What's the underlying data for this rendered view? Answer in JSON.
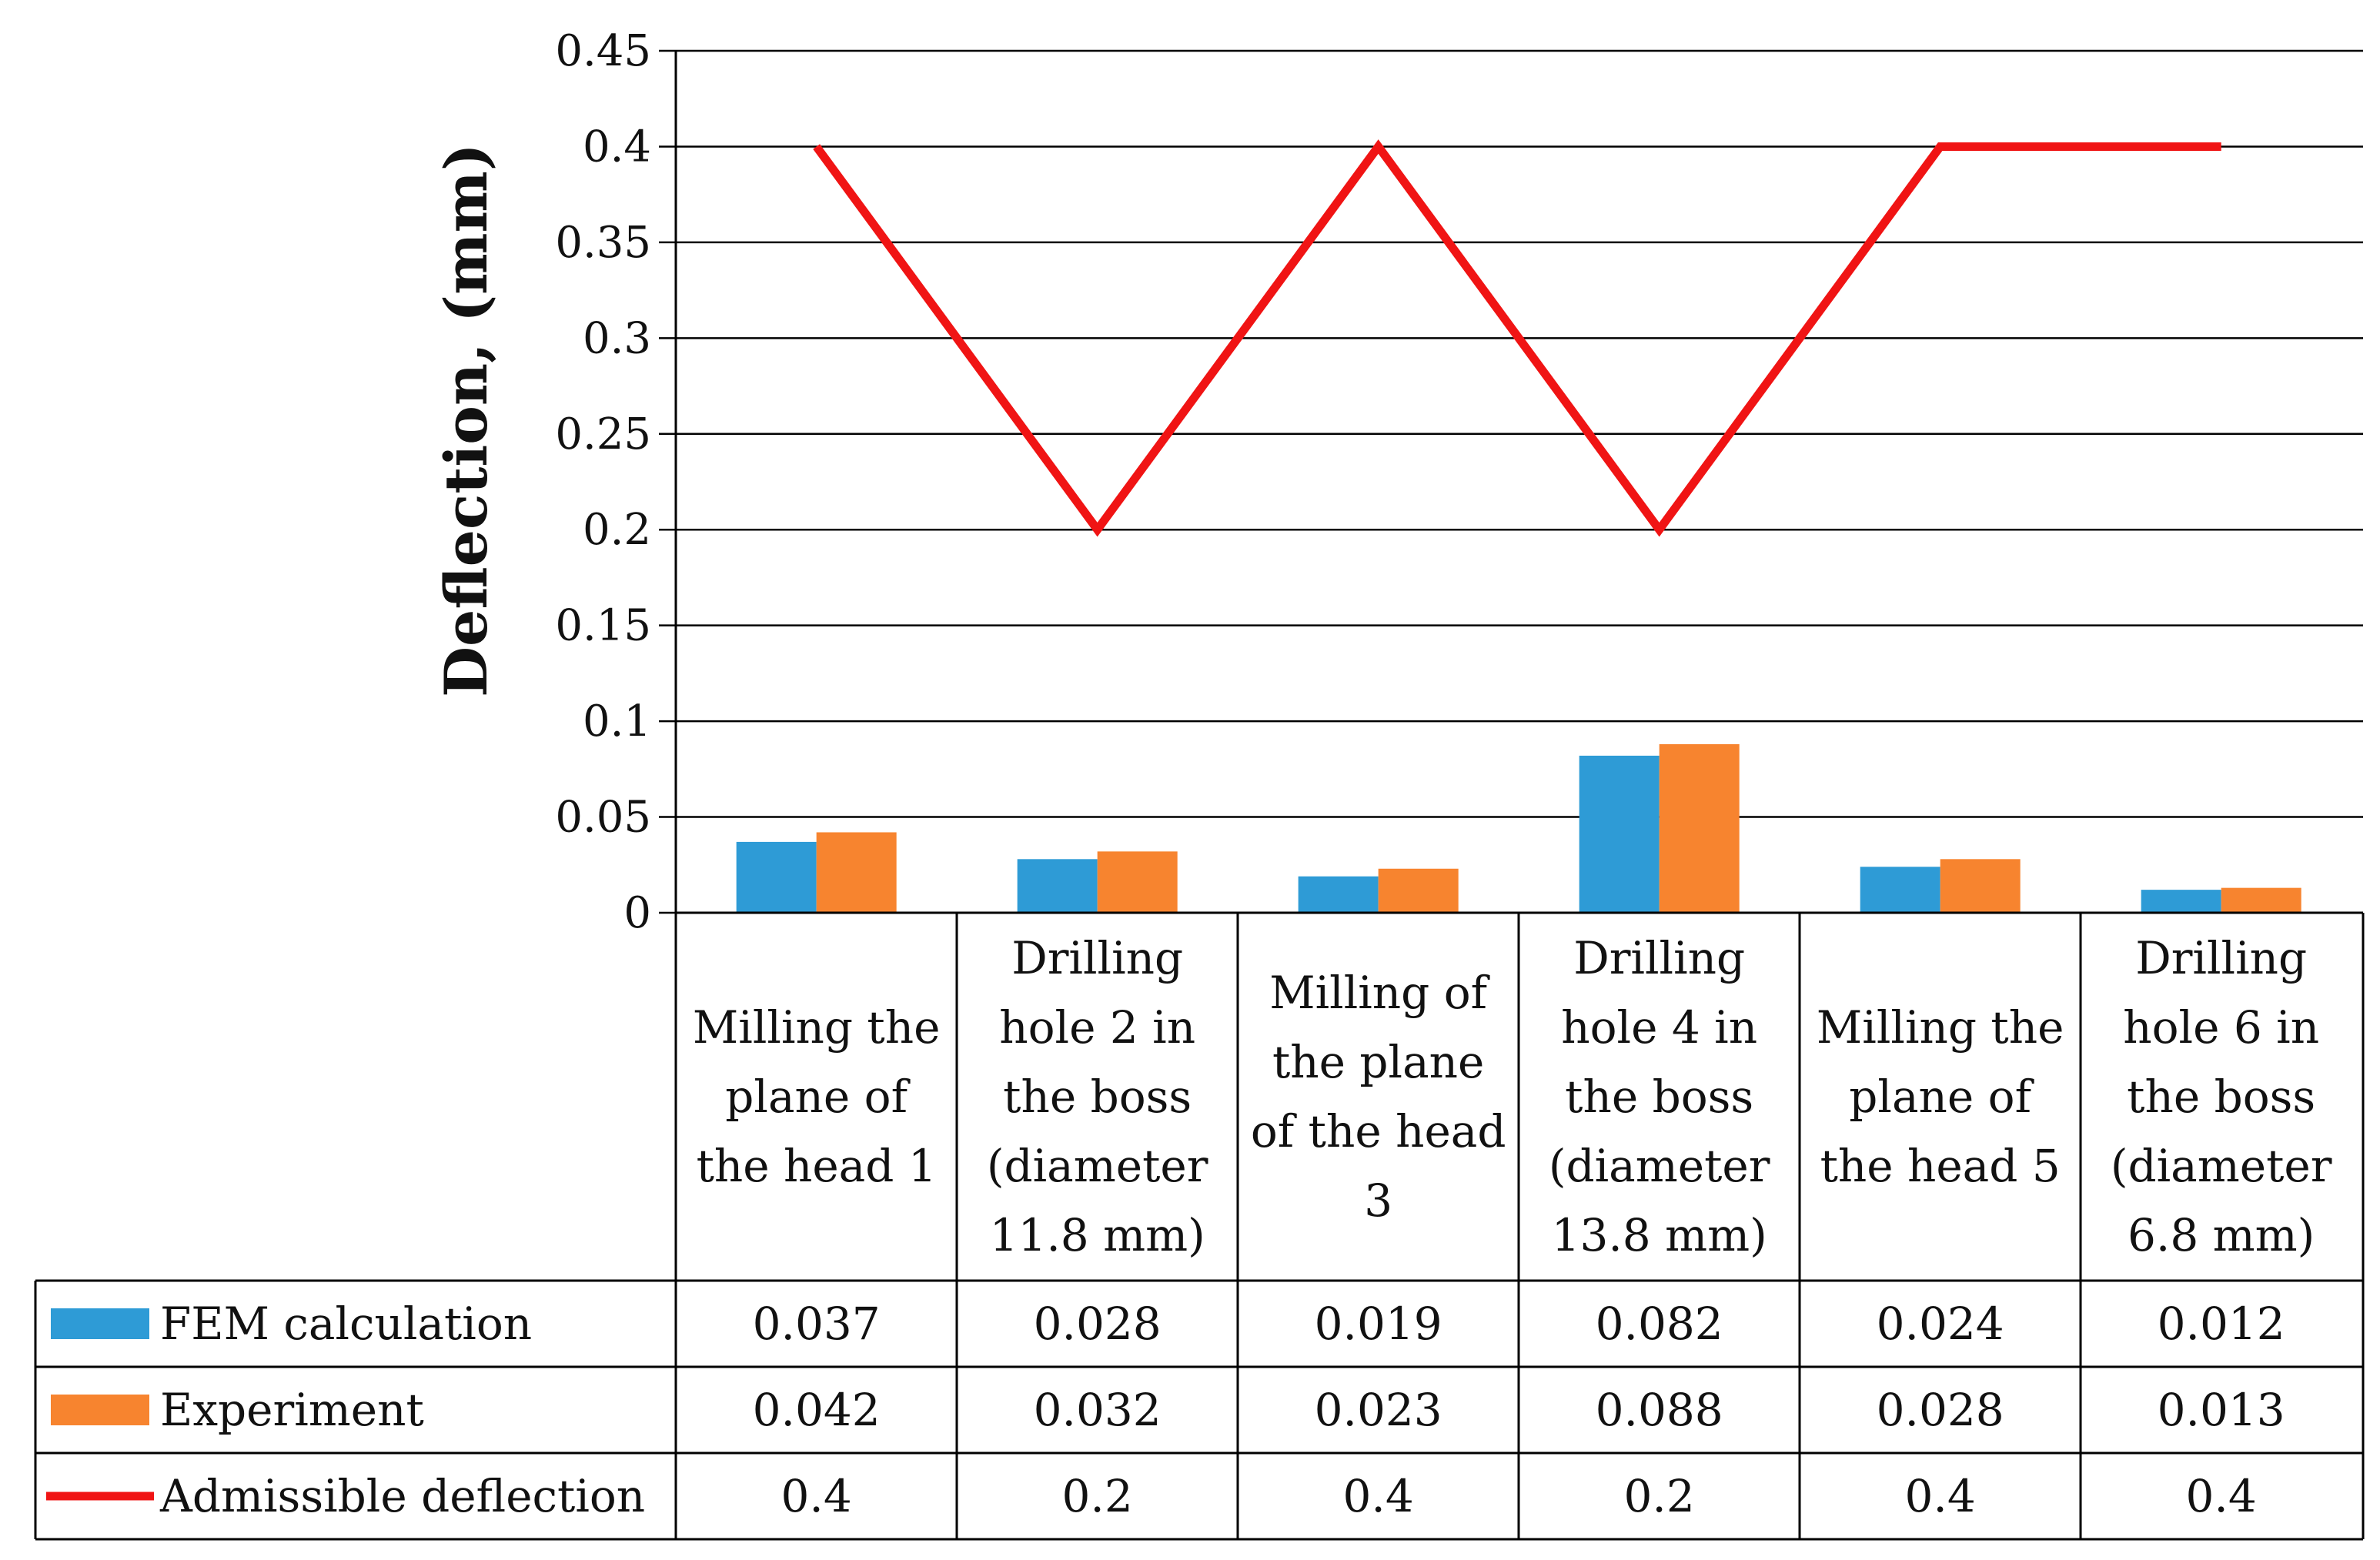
{
  "chart_data": {
    "type": "bar",
    "title": "",
    "xlabel": "",
    "ylabel": "Deflection, (mm)",
    "ylim": [
      0,
      0.45
    ],
    "yticks": [
      "0",
      "0.05",
      "0.1",
      "0.15",
      "0.2",
      "0.25",
      "0.3",
      "0.35",
      "0.4",
      "0.45"
    ],
    "grid": true,
    "categories": [
      [
        "Milling the",
        "plane of",
        "the head 1"
      ],
      [
        "Drilling",
        "hole 2 in",
        "the boss",
        "(diameter",
        "11.8 mm)"
      ],
      [
        "Milling of",
        "the plane",
        "of the head",
        "3"
      ],
      [
        "Drilling",
        "hole 4 in",
        "the boss",
        "(diameter",
        "13.8 mm)"
      ],
      [
        "Milling the",
        "plane of",
        "the head 5"
      ],
      [
        "Drilling",
        "hole 6 in",
        "the boss",
        "(diameter",
        "6.8 mm)"
      ]
    ],
    "series": [
      {
        "name": "FEM calculation",
        "kind": "bar",
        "color": "#2E9BD6",
        "values": [
          0.037,
          0.028,
          0.019,
          0.082,
          0.024,
          0.012
        ],
        "labels": [
          "0.037",
          "0.028",
          "0.019",
          "0.082",
          "0.024",
          "0.012"
        ]
      },
      {
        "name": "Experiment",
        "kind": "bar",
        "color": "#F7842F",
        "values": [
          0.042,
          0.032,
          0.023,
          0.088,
          0.028,
          0.013
        ],
        "labels": [
          "0.042",
          "0.032",
          "0.023",
          "0.088",
          "0.028",
          "0.013"
        ]
      },
      {
        "name": "Admissible deflection",
        "kind": "line",
        "color": "#F01414",
        "values": [
          0.4,
          0.2,
          0.4,
          0.2,
          0.4,
          0.4
        ],
        "labels": [
          "0.4",
          "0.2",
          "0.4",
          "0.2",
          "0.4",
          "0.4"
        ]
      }
    ]
  }
}
